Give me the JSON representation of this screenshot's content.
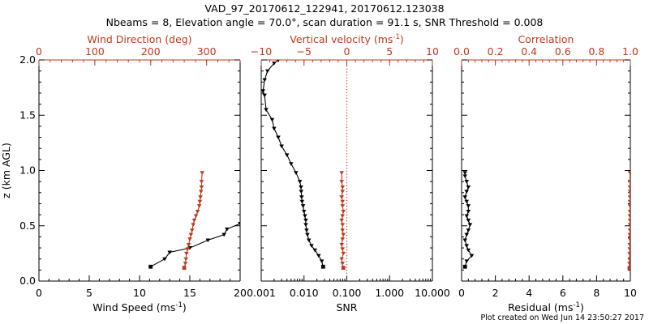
{
  "header": {
    "title": "VAD_97_20170612_122941, 20170612.123038",
    "subtitle": "Nbeams = 8, Elevation angle = 70.0°, scan duration = 91.1 s, SNR Threshold = 0.008"
  },
  "footer": {
    "credit": "Plot created on Wed Jun 14 23:50:27 2017"
  },
  "colors": {
    "primary": "#000000",
    "secondary": "#c0391b",
    "dotted_line": "#c0391b"
  },
  "chart_data": [
    {
      "type": "line",
      "panel": "wind",
      "ylabel": "z (km AGL)",
      "ylim": [
        0,
        2
      ],
      "yticks": [
        "0.0",
        "0.5",
        "1.0",
        "1.5",
        "2.0"
      ],
      "bottom_axis": {
        "label": "Wind Speed (ms",
        "unit_sup": "-1",
        "label_tail": ")",
        "xlim": [
          0,
          20
        ],
        "ticks": [
          "0",
          "5",
          "10",
          "15",
          "20"
        ],
        "color": "#000000"
      },
      "top_axis": {
        "label": "Wind Direction (deg)",
        "xlim": [
          0,
          360
        ],
        "ticks": [
          "0",
          "100",
          "200",
          "300"
        ],
        "color": "#c0391b"
      },
      "series": [
        {
          "axis": "bottom",
          "color": "#000000",
          "marker": "triangle",
          "x": [
            11.1,
            12.5,
            13.0,
            15.0,
            16.8,
            18.4,
            18.7,
            20.0
          ],
          "y": [
            0.13,
            0.2,
            0.26,
            0.3,
            0.37,
            0.42,
            0.47,
            0.52
          ]
        },
        {
          "axis": "top",
          "color": "#c0391b",
          "marker": "triangle",
          "x": [
            260,
            262,
            263,
            264,
            266,
            268,
            270,
            272,
            274,
            276,
            278,
            281,
            284,
            287,
            288,
            289,
            290,
            291,
            291,
            292
          ],
          "y": [
            0.12,
            0.16,
            0.2,
            0.25,
            0.29,
            0.33,
            0.38,
            0.42,
            0.46,
            0.51,
            0.55,
            0.59,
            0.63,
            0.68,
            0.72,
            0.76,
            0.81,
            0.85,
            0.9,
            0.98
          ]
        }
      ]
    },
    {
      "type": "line",
      "panel": "vertical-velocity-snr",
      "ylim": [
        0,
        2
      ],
      "bottom_axis": {
        "label": "SNR",
        "scale": "log",
        "xlim": [
          0.001,
          10
        ],
        "ticks": [
          "0.001",
          "0.010",
          "0.100",
          "1.000",
          "10.000"
        ],
        "color": "#000000"
      },
      "top_axis": {
        "label": "Vertical velocity (ms",
        "unit_sup": "-1",
        "label_tail": ")",
        "xlim": [
          -10,
          10
        ],
        "ticks": [
          "−10",
          "−5",
          "0",
          "5",
          "10"
        ],
        "color": "#c0391b"
      },
      "reference_line": {
        "axis": "top",
        "x": 0,
        "style": "dotted"
      },
      "series": [
        {
          "axis": "bottom",
          "color": "#000000",
          "marker": "triangle",
          "x": [
            0.028,
            0.026,
            0.022,
            0.018,
            0.015,
            0.013,
            0.012,
            0.0115,
            0.011,
            0.011,
            0.0105,
            0.01,
            0.0095,
            0.009,
            0.0088,
            0.0086,
            0.0085,
            0.008,
            0.0065,
            0.005,
            0.004,
            0.003,
            0.0025,
            0.002,
            0.0018,
            0.0013,
            0.0012,
            0.0011,
            0.0012,
            0.0014,
            0.002,
            0.0025
          ],
          "y": [
            0.13,
            0.18,
            0.23,
            0.28,
            0.32,
            0.37,
            0.42,
            0.46,
            0.51,
            0.55,
            0.59,
            0.63,
            0.68,
            0.72,
            0.76,
            0.81,
            0.85,
            0.9,
            0.98,
            1.06,
            1.14,
            1.22,
            1.3,
            1.38,
            1.46,
            1.55,
            1.68,
            1.72,
            1.82,
            1.9,
            1.97,
            2.0
          ]
        },
        {
          "axis": "top",
          "color": "#c0391b",
          "marker": "triangle",
          "x": [
            -0.4,
            -0.5,
            -0.6,
            -0.4,
            -0.5,
            -0.6,
            -0.5,
            -0.4,
            -0.5,
            -0.5,
            -0.6,
            -0.5,
            -0.4,
            -0.5,
            -0.5,
            -0.6,
            -0.5,
            -0.5,
            -0.6,
            -0.6
          ],
          "y": [
            0.12,
            0.16,
            0.2,
            0.25,
            0.29,
            0.33,
            0.38,
            0.42,
            0.46,
            0.51,
            0.55,
            0.59,
            0.63,
            0.68,
            0.72,
            0.76,
            0.81,
            0.85,
            0.9,
            0.98
          ]
        }
      ]
    },
    {
      "type": "line",
      "panel": "residual-correlation",
      "ylim": [
        0,
        2
      ],
      "bottom_axis": {
        "label": "Residual (ms",
        "unit_sup": "-1",
        "label_tail": ")",
        "xlim": [
          0,
          10
        ],
        "ticks": [
          "0",
          "2",
          "4",
          "6",
          "8",
          "10"
        ],
        "color": "#000000"
      },
      "top_axis": {
        "label": "Correlation",
        "xlim": [
          0,
          1
        ],
        "ticks": [
          "0.0",
          "0.2",
          "0.4",
          "0.6",
          "0.8",
          "1.0"
        ],
        "color": "#c0391b"
      },
      "series": [
        {
          "axis": "bottom",
          "color": "#000000",
          "marker": "triangle",
          "x": [
            0.2,
            0.3,
            0.6,
            0.4,
            0.3,
            0.2,
            0.3,
            0.4,
            0.5,
            0.4,
            0.3,
            0.4,
            0.4,
            0.3,
            0.2,
            0.3,
            0.4,
            0.3,
            0.2,
            0.2
          ],
          "y": [
            0.13,
            0.18,
            0.23,
            0.28,
            0.32,
            0.37,
            0.42,
            0.46,
            0.51,
            0.55,
            0.59,
            0.63,
            0.68,
            0.72,
            0.76,
            0.81,
            0.85,
            0.9,
            0.95,
            0.98
          ]
        },
        {
          "axis": "top",
          "color": "#c0391b",
          "marker": "triangle",
          "x": [
            0.995,
            0.995,
            0.996,
            0.996,
            0.997,
            0.997,
            0.997,
            0.997,
            0.998,
            0.998,
            0.998,
            0.998,
            0.998,
            0.998,
            0.998,
            0.998,
            0.998,
            0.998,
            0.998,
            0.998
          ],
          "y": [
            0.12,
            0.16,
            0.2,
            0.25,
            0.29,
            0.33,
            0.38,
            0.42,
            0.46,
            0.51,
            0.55,
            0.59,
            0.63,
            0.68,
            0.72,
            0.76,
            0.81,
            0.85,
            0.9,
            0.98
          ]
        }
      ]
    }
  ]
}
